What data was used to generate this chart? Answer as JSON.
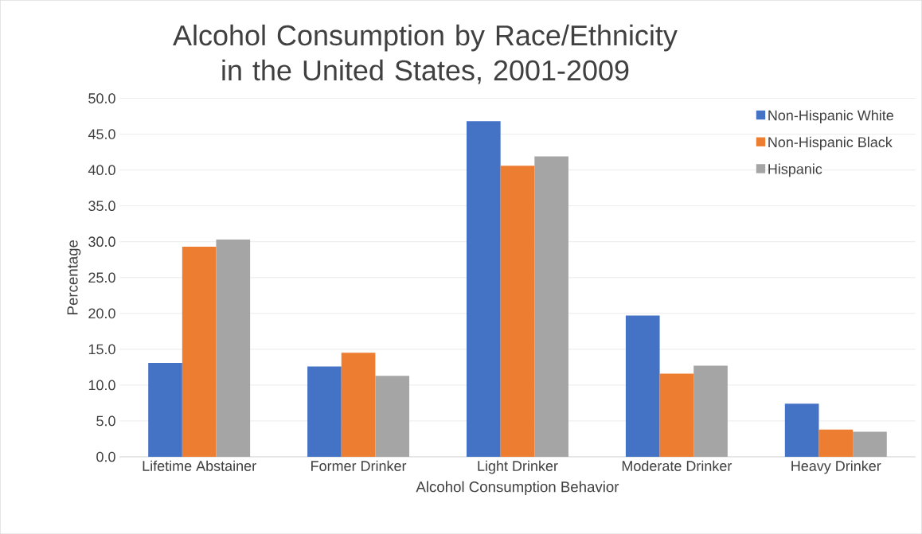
{
  "chart_data": {
    "type": "bar",
    "title": "Alcohol Consumption by Race/Ethnicity in the United States, 2001-2009",
    "xlabel": "Alcohol Consumption Behavior",
    "ylabel": "Percentage",
    "categories": [
      "Lifetime Abstainer",
      "Former Drinker",
      "Light Drinker",
      "Moderate Drinker",
      "Heavy Drinker"
    ],
    "series": [
      {
        "name": "Non-Hispanic White",
        "color": "#4472c4",
        "values": [
          13.1,
          12.6,
          46.8,
          19.7,
          7.4
        ]
      },
      {
        "name": "Non-Hispanic Black",
        "color": "#ed7d31",
        "values": [
          29.3,
          14.5,
          40.6,
          11.6,
          3.8
        ]
      },
      {
        "name": "Hispanic",
        "color": "#a5a5a5",
        "values": [
          30.3,
          11.3,
          41.9,
          12.7,
          3.5
        ]
      }
    ],
    "ylim": [
      0,
      50
    ],
    "yticks": [
      {
        "value": 0,
        "label": "0.0"
      },
      {
        "value": 5,
        "label": "5.0"
      },
      {
        "value": 10,
        "label": "10.0"
      },
      {
        "value": 15,
        "label": "15.0"
      },
      {
        "value": 20,
        "label": "20.0"
      },
      {
        "value": 25,
        "label": "25.0"
      },
      {
        "value": 30,
        "label": "30.0"
      },
      {
        "value": 35,
        "label": "35.0"
      },
      {
        "value": 40,
        "label": "40.0"
      },
      {
        "value": 45,
        "label": "45.0"
      },
      {
        "value": 50,
        "label": "50.0"
      }
    ],
    "grid": "y",
    "legend": "top right"
  }
}
